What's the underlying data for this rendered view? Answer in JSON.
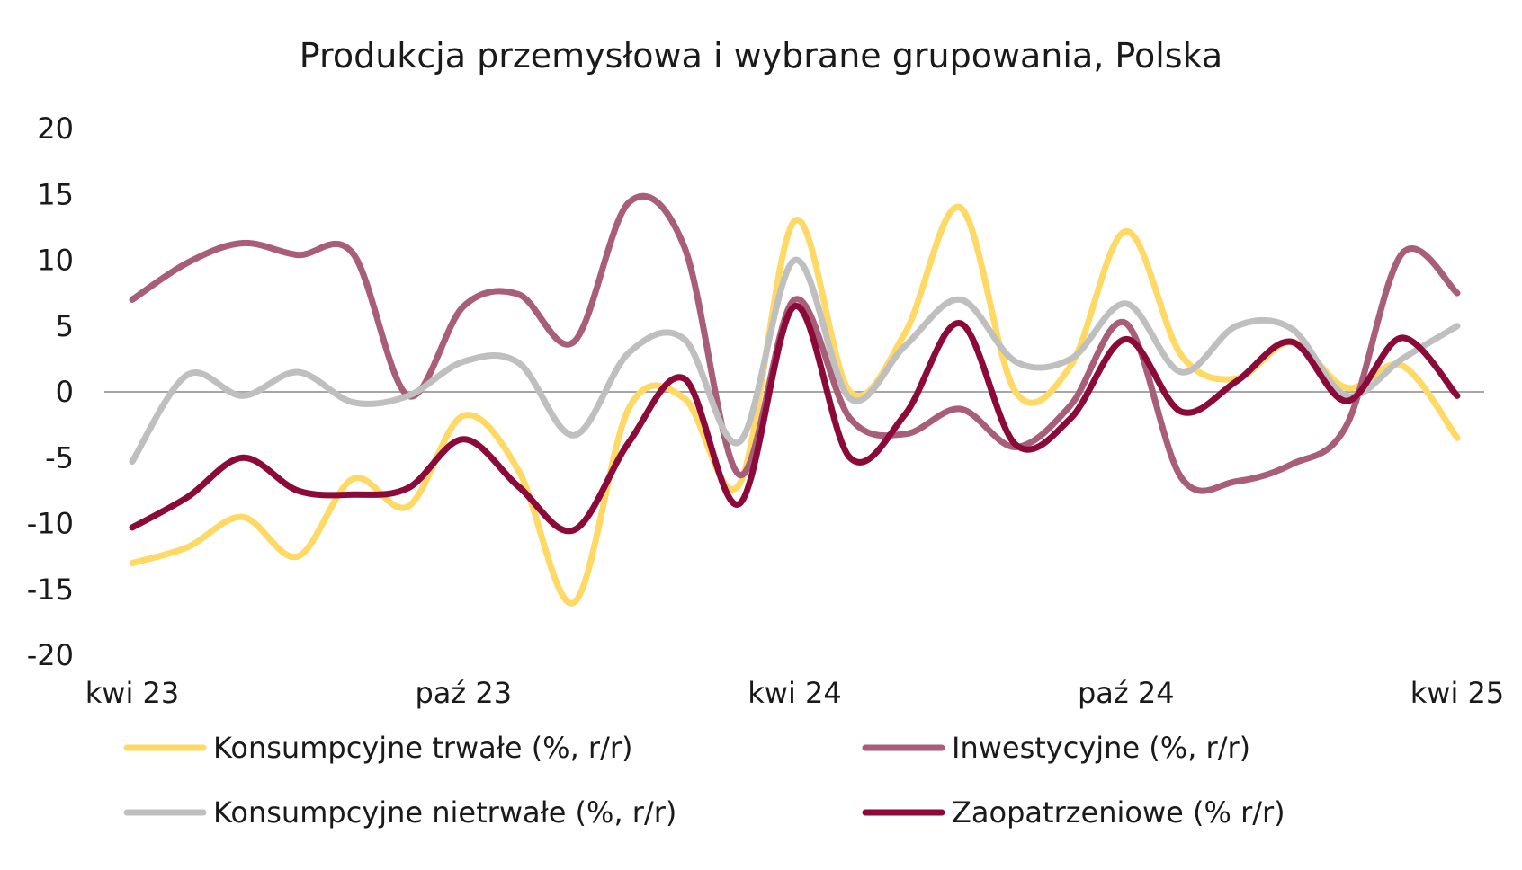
{
  "chart_data": {
    "type": "line",
    "title": "Produkcja przemysłowa i wybrane grupowania, Polska",
    "xlabel": "",
    "ylabel": "",
    "ylim": [
      -20,
      20
    ],
    "yticks": [
      20,
      15,
      10,
      5,
      0,
      -5,
      -10,
      -15,
      -20
    ],
    "x": [
      "2023-04",
      "2023-05",
      "2023-06",
      "2023-07",
      "2023-08",
      "2023-09",
      "2023-10",
      "2023-11",
      "2023-12",
      "2024-01",
      "2024-02",
      "2024-03",
      "2024-04",
      "2024-05",
      "2024-06",
      "2024-07",
      "2024-08",
      "2024-09",
      "2024-10",
      "2024-11",
      "2024-12",
      "2025-01",
      "2025-02",
      "2025-03",
      "2025-04"
    ],
    "xtick_labels": [
      {
        "index": 0,
        "label": "kwi 23"
      },
      {
        "index": 6,
        "label": "paź 23"
      },
      {
        "index": 12,
        "label": "kwi 24"
      },
      {
        "index": 18,
        "label": "paź 24"
      },
      {
        "index": 24,
        "label": "kwi 25"
      }
    ],
    "grid": false,
    "zero_line": true,
    "legend_position": "bottom",
    "series": [
      {
        "name": "Konsumpcyjne trwałe (%, r/r)",
        "color": "#FFD966",
        "values": [
          -13.0,
          -11.8,
          -9.5,
          -12.5,
          -6.6,
          -8.7,
          -1.8,
          -6.0,
          -16.0,
          -1.2,
          -0.5,
          -7.0,
          13.0,
          0.0,
          4.5,
          14.0,
          0.0,
          2.0,
          12.2,
          2.8,
          1.0,
          3.8,
          0.3,
          2.0,
          -3.5
        ]
      },
      {
        "name": "Inwestycyjne (%, r/r)",
        "color": "#A85D78",
        "values": [
          7.0,
          9.8,
          11.3,
          10.4,
          10.5,
          -0.3,
          6.5,
          7.4,
          3.8,
          14.4,
          11.0,
          -6.3,
          7.0,
          -2.0,
          -3.2,
          -1.3,
          -4.2,
          -1.0,
          5.2,
          -6.5,
          -6.8,
          -5.5,
          -2.5,
          10.5,
          7.5
        ]
      },
      {
        "name": "Konsumpcyjne nietrwałe (%, r/r)",
        "color": "#BFBFBF",
        "values": [
          -5.3,
          1.3,
          -0.3,
          1.5,
          -0.8,
          -0.3,
          2.3,
          2.2,
          -3.3,
          3.0,
          4.0,
          -3.8,
          10.0,
          -0.5,
          3.5,
          7.0,
          2.3,
          2.5,
          6.7,
          1.5,
          5.0,
          4.8,
          -0.3,
          2.5,
          5.0
        ]
      },
      {
        "name": "Zaopatrzeniowe (% r/r)",
        "color": "#8B0A3A",
        "values": [
          -10.3,
          -8.0,
          -5.0,
          -7.5,
          -7.8,
          -7.3,
          -3.6,
          -7.2,
          -10.5,
          -3.8,
          1.0,
          -8.5,
          6.5,
          -5.0,
          -1.7,
          5.2,
          -4.0,
          -2.0,
          4.0,
          -1.5,
          0.8,
          3.8,
          -0.7,
          4.1,
          -0.3
        ]
      }
    ]
  }
}
